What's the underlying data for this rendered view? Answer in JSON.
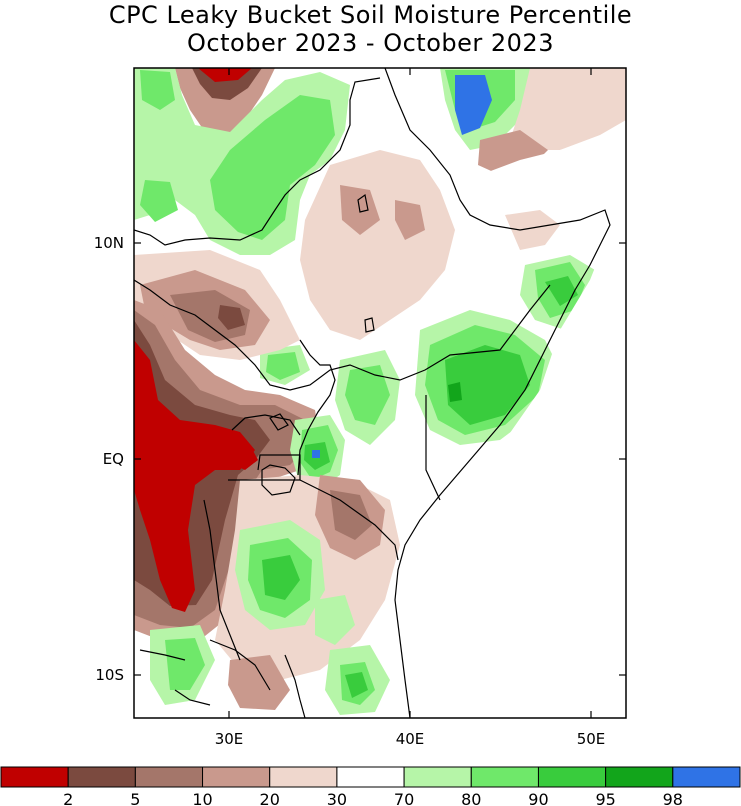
{
  "title": {
    "line1": "CPC Leaky Bucket Soil Moisture Percentile",
    "line2": "October 2023 - October 2023"
  },
  "axes": {
    "lat_labels": [
      "10N",
      "EQ",
      "10S"
    ],
    "lon_labels": [
      "30E",
      "40E",
      "50E"
    ]
  },
  "colorbar": {
    "colors": [
      "#c00000",
      "#7b4a3f",
      "#a4766a",
      "#c9998d",
      "#efd7cd",
      "#ffffff",
      "#b6f5a8",
      "#6fe86a",
      "#39cc3d",
      "#12a51b",
      "#2f73e6"
    ],
    "labels": [
      "2",
      "5",
      "10",
      "20",
      "30",
      "70",
      "80",
      "90",
      "95",
      "98"
    ]
  },
  "palette": {
    "dry_extreme": "#c00000",
    "dry_very": "#7b4a3f",
    "dry_mod": "#a4766a",
    "dry_light": "#c9998d",
    "dry_slight": "#efd7cd",
    "normal": "#ffffff",
    "wet_slight": "#b6f5a8",
    "wet_mod": "#6fe86a",
    "wet_high": "#39cc3d",
    "wet_very": "#12a51b",
    "wet_extreme": "#2f73e6"
  }
}
